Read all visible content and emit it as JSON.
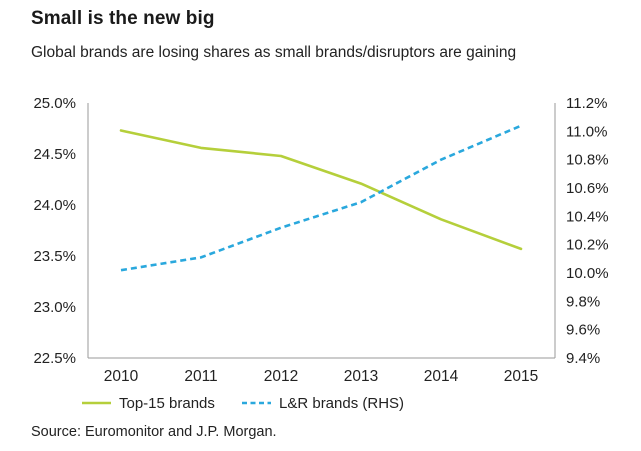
{
  "title": "Small is the new big",
  "subtitle": "Global brands are losing shares as small brands/disruptors are gaining",
  "source": "Source: Euromonitor and J.P. Morgan.",
  "chart_data": {
    "type": "line",
    "x": [
      "2010",
      "2011",
      "2012",
      "2013",
      "2014",
      "2015"
    ],
    "series": [
      {
        "name": "Top-15 brands",
        "axis": "left",
        "style": "solid",
        "color": "#b5cf3b",
        "values": [
          24.73,
          24.56,
          24.48,
          24.21,
          23.86,
          23.57
        ]
      },
      {
        "name": "L&R brands (RHS)",
        "axis": "right",
        "style": "dashed",
        "color": "#2aa8dd",
        "values": [
          10.02,
          10.11,
          10.32,
          10.5,
          10.8,
          11.04
        ]
      }
    ],
    "left_axis": {
      "ylim": [
        22.5,
        25.0
      ],
      "ticks": [
        22.5,
        23.0,
        23.5,
        24.0,
        24.5,
        25.0
      ],
      "tick_labels": [
        "22.5%",
        "23.0%",
        "23.5%",
        "24.0%",
        "24.5%",
        "25.0%"
      ]
    },
    "right_axis": {
      "ylim": [
        9.4,
        11.2
      ],
      "ticks": [
        9.4,
        9.6,
        9.8,
        10.0,
        10.2,
        10.4,
        10.6,
        10.8,
        11.0,
        11.2
      ],
      "tick_labels": [
        "9.4%",
        "9.6%",
        "9.8%",
        "10.0%",
        "10.2%",
        "10.4%",
        "10.6%",
        "10.8%",
        "11.0%",
        "11.2%"
      ]
    },
    "grid": false,
    "legend_position": "bottom-left"
  }
}
